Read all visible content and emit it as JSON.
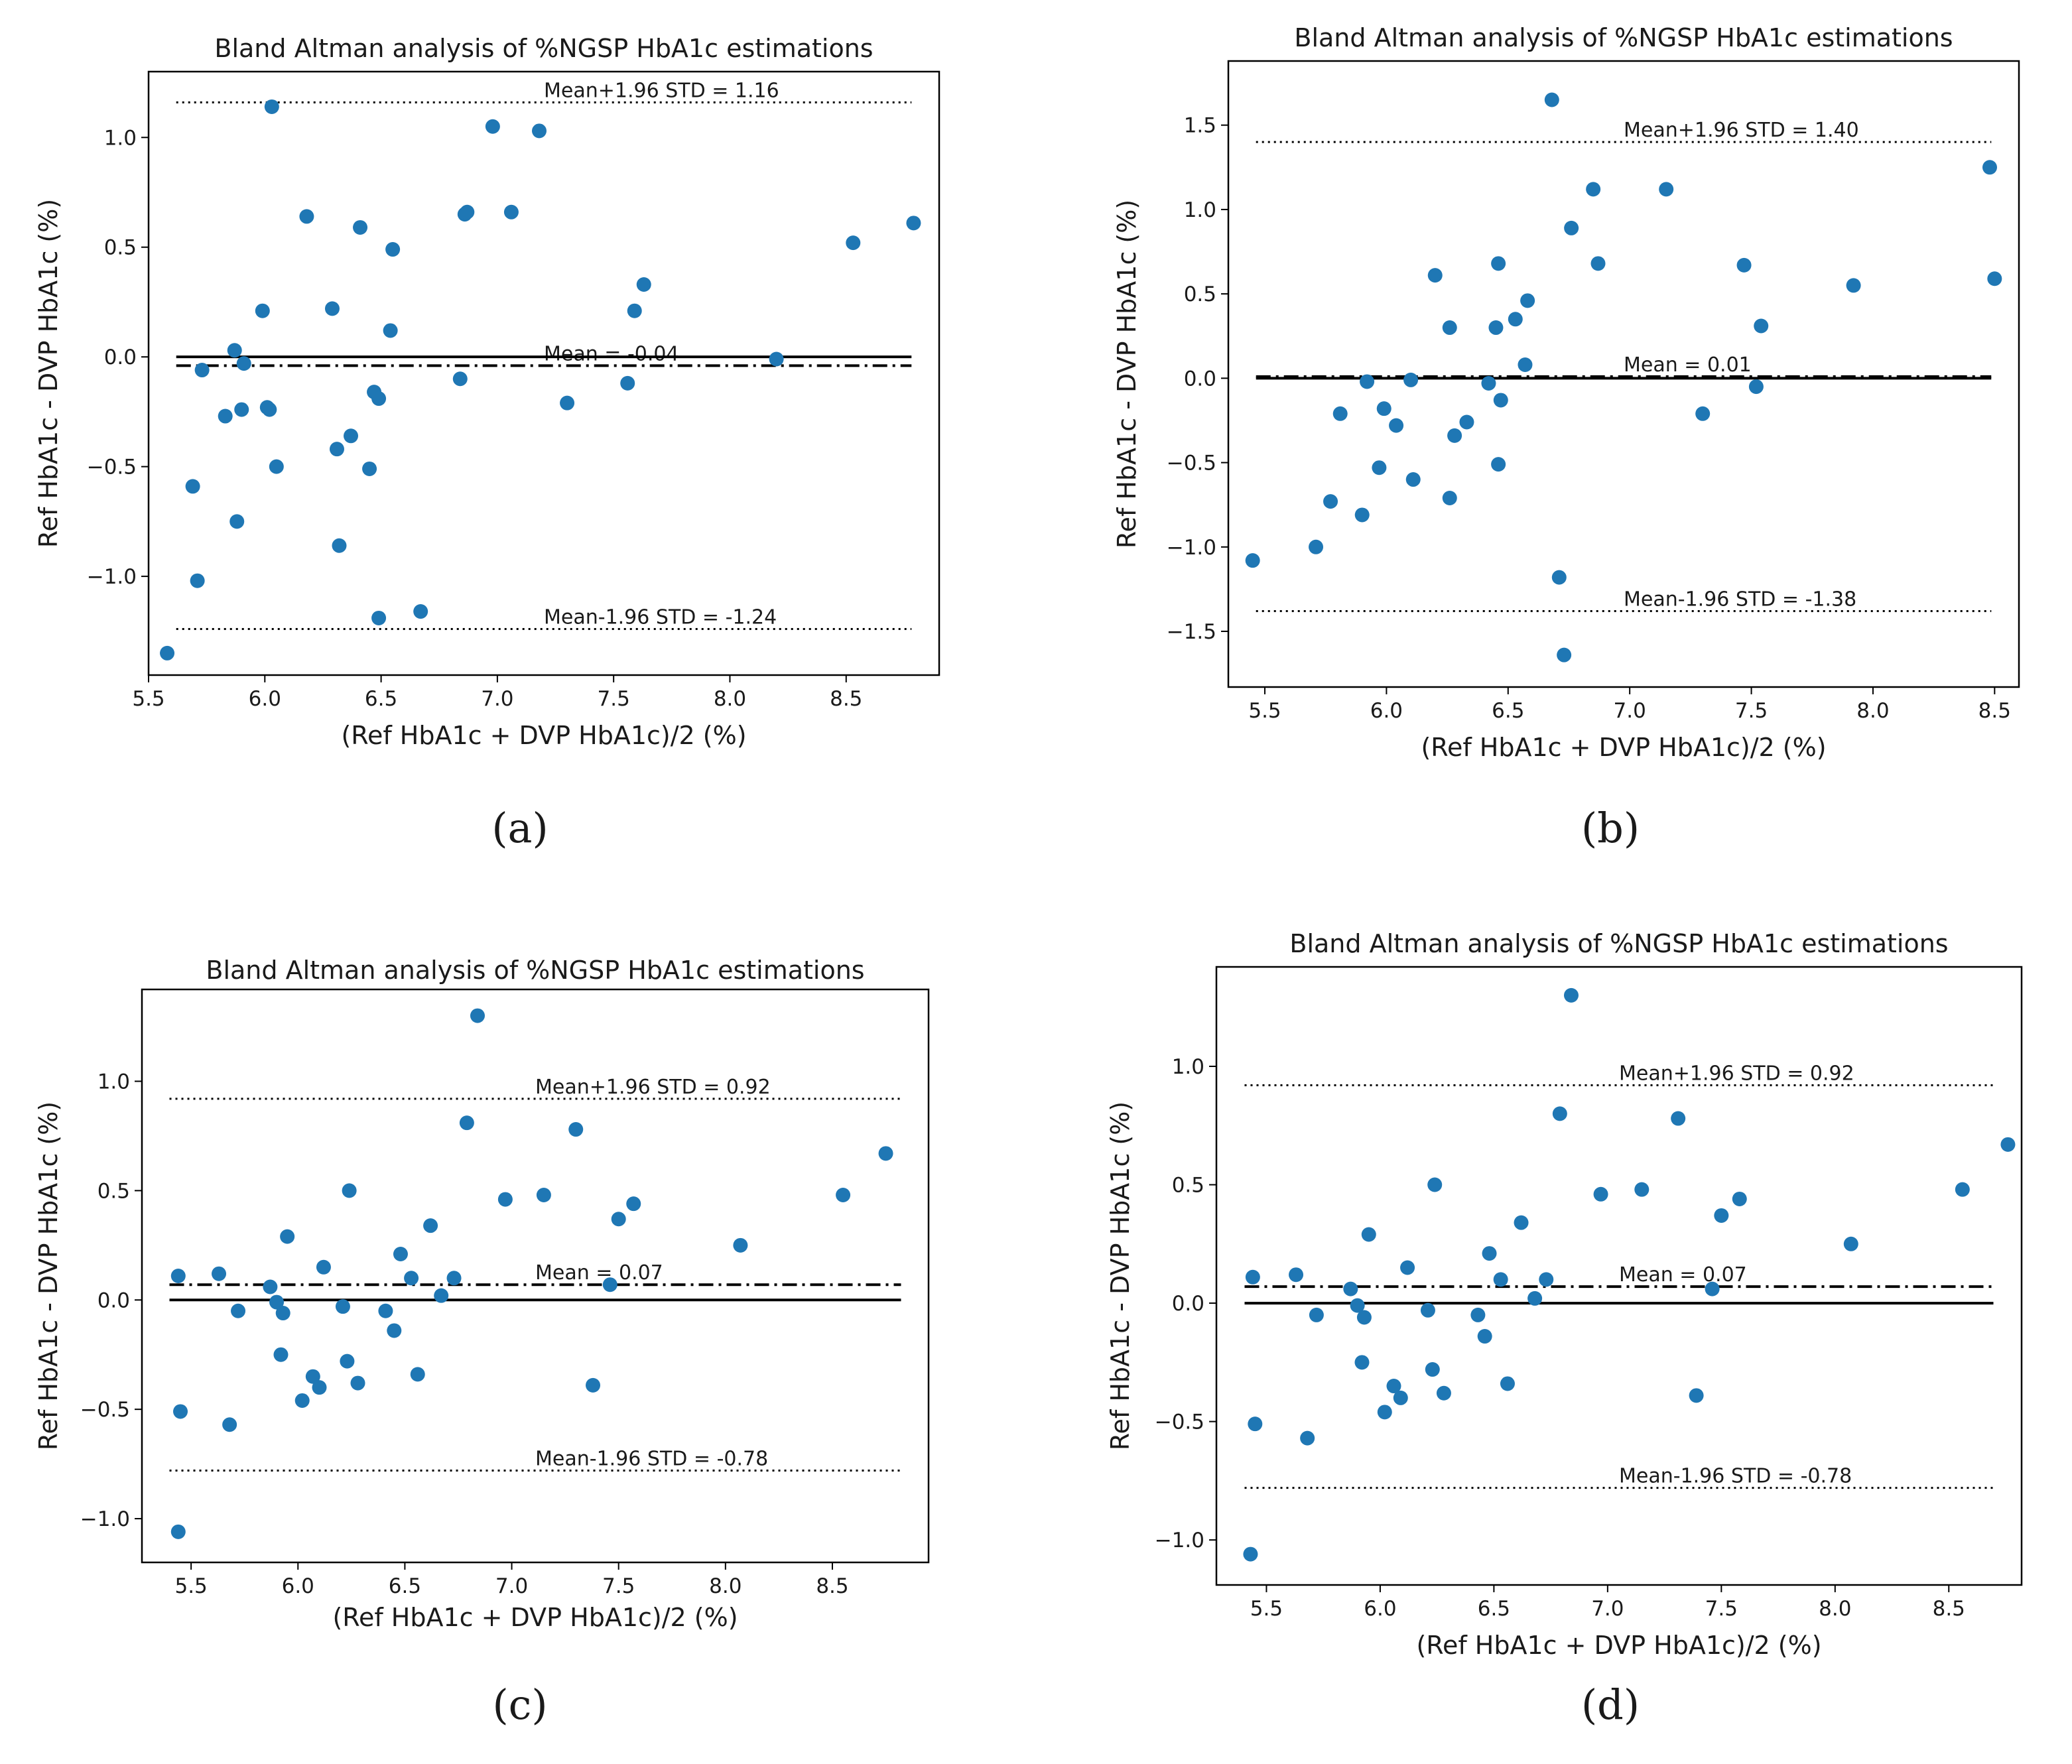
{
  "figure": {
    "caption_labels": [
      "(a)",
      "(b)",
      "(c)",
      "(d)"
    ]
  },
  "chart_data": [
    {
      "panel": "(a)",
      "type": "scatter",
      "title": "Bland Altman analysis of %NGSP HbA1c estimations",
      "xlabel": "(Ref HbA1c + DVP HbA1c)/2 (%)",
      "ylabel": "Ref HbA1c - DVP HbA1c (%)",
      "xlim": [
        5.5,
        8.9
      ],
      "ylim": [
        -1.45,
        1.3
      ],
      "xticks": [
        5.5,
        6.0,
        6.5,
        7.0,
        7.5,
        8.0,
        8.5
      ],
      "yticks": [
        -1.0,
        -0.5,
        0.0,
        0.5,
        1.0
      ],
      "marker_color": "#1f77b4",
      "lines": [
        {
          "name": "mean",
          "value": -0.04,
          "style": "dashdot",
          "label": "Mean = -0.04"
        },
        {
          "name": "zero",
          "value": 0.0,
          "style": "solid",
          "label": ""
        },
        {
          "name": "upper",
          "value": 1.16,
          "style": "dotted",
          "label": "Mean+1.96 STD = 1.16"
        },
        {
          "name": "lower",
          "value": -1.24,
          "style": "dotted",
          "label": "Mean-1.96 STD = -1.24"
        }
      ],
      "points": [
        [
          5.58,
          -1.35
        ],
        [
          5.69,
          -0.59
        ],
        [
          5.71,
          -1.02
        ],
        [
          5.73,
          -0.06
        ],
        [
          5.83,
          -0.27
        ],
        [
          5.87,
          0.03
        ],
        [
          5.88,
          -0.75
        ],
        [
          5.9,
          -0.24
        ],
        [
          5.91,
          -0.03
        ],
        [
          5.99,
          0.21
        ],
        [
          6.01,
          -0.23
        ],
        [
          6.02,
          -0.24
        ],
        [
          6.03,
          1.14
        ],
        [
          6.05,
          -0.5
        ],
        [
          6.18,
          0.64
        ],
        [
          6.29,
          0.22
        ],
        [
          6.31,
          -0.42
        ],
        [
          6.32,
          -0.86
        ],
        [
          6.37,
          -0.36
        ],
        [
          6.41,
          0.59
        ],
        [
          6.45,
          -0.51
        ],
        [
          6.47,
          -0.16
        ],
        [
          6.49,
          -0.19
        ],
        [
          6.49,
          -1.19
        ],
        [
          6.54,
          0.12
        ],
        [
          6.55,
          0.49
        ],
        [
          6.67,
          -1.16
        ],
        [
          6.84,
          -0.1
        ],
        [
          6.86,
          0.65
        ],
        [
          6.87,
          0.66
        ],
        [
          6.98,
          1.05
        ],
        [
          7.06,
          0.66
        ],
        [
          7.18,
          1.03
        ],
        [
          7.3,
          -0.21
        ],
        [
          7.56,
          -0.12
        ],
        [
          7.59,
          0.21
        ],
        [
          7.63,
          0.33
        ],
        [
          8.2,
          -0.01
        ],
        [
          8.53,
          0.52
        ],
        [
          8.79,
          0.61
        ]
      ]
    },
    {
      "panel": "(b)",
      "type": "scatter",
      "title": "Bland Altman analysis of %NGSP HbA1c estimations",
      "xlabel": "(Ref HbA1c + DVP HbA1c)/2 (%)",
      "ylabel": "Ref HbA1c - DVP HbA1c (%)",
      "xlim": [
        5.35,
        8.6
      ],
      "ylim": [
        -1.83,
        1.88
      ],
      "xticks": [
        5.5,
        6.0,
        6.5,
        7.0,
        7.5,
        8.0,
        8.5
      ],
      "yticks": [
        -1.5,
        -1.0,
        -0.5,
        0.0,
        0.5,
        1.0,
        1.5
      ],
      "marker_color": "#1f77b4",
      "lines": [
        {
          "name": "mean",
          "value": 0.01,
          "style": "dashdot",
          "label": "Mean = 0.01"
        },
        {
          "name": "zero",
          "value": 0.0,
          "style": "solid",
          "label": ""
        },
        {
          "name": "upper",
          "value": 1.4,
          "style": "dotted",
          "label": "Mean+1.96 STD = 1.40"
        },
        {
          "name": "lower",
          "value": -1.38,
          "style": "dotted",
          "label": "Mean-1.96 STD = -1.38"
        }
      ],
      "points": [
        [
          5.45,
          -1.08
        ],
        [
          5.71,
          -1.0
        ],
        [
          5.77,
          -0.73
        ],
        [
          5.81,
          -0.21
        ],
        [
          5.9,
          -0.81
        ],
        [
          5.92,
          -0.02
        ],
        [
          5.97,
          -0.53
        ],
        [
          5.99,
          -0.18
        ],
        [
          6.04,
          -0.28
        ],
        [
          6.1,
          -0.01
        ],
        [
          6.11,
          -0.6
        ],
        [
          6.2,
          0.61
        ],
        [
          6.26,
          0.3
        ],
        [
          6.26,
          -0.71
        ],
        [
          6.28,
          -0.34
        ],
        [
          6.33,
          -0.26
        ],
        [
          6.42,
          -0.03
        ],
        [
          6.45,
          0.3
        ],
        [
          6.46,
          0.68
        ],
        [
          6.46,
          -0.51
        ],
        [
          6.47,
          -0.13
        ],
        [
          6.53,
          0.35
        ],
        [
          6.57,
          0.08
        ],
        [
          6.58,
          0.46
        ],
        [
          6.68,
          1.65
        ],
        [
          6.71,
          -1.18
        ],
        [
          6.73,
          -1.64
        ],
        [
          6.76,
          0.89
        ],
        [
          6.85,
          1.12
        ],
        [
          6.87,
          0.68
        ],
        [
          7.15,
          1.12
        ],
        [
          7.3,
          -0.21
        ],
        [
          7.47,
          0.67
        ],
        [
          7.52,
          -0.05
        ],
        [
          7.54,
          0.31
        ],
        [
          7.92,
          0.55
        ],
        [
          8.48,
          1.25
        ],
        [
          8.5,
          0.59
        ]
      ]
    },
    {
      "panel": "(c)",
      "type": "scatter",
      "title": "Bland Altman analysis of %NGSP HbA1c estimations",
      "xlabel": "(Ref HbA1c + DVP HbA1c)/2 (%)",
      "ylabel": "Ref HbA1c - DVP HbA1c (%)",
      "xlim": [
        5.27,
        8.95
      ],
      "ylim": [
        -1.2,
        1.42
      ],
      "xticks": [
        5.5,
        6.0,
        6.5,
        7.0,
        7.5,
        8.0,
        8.5
      ],
      "yticks": [
        -1.0,
        -0.5,
        0.0,
        0.5,
        1.0
      ],
      "marker_color": "#1f77b4",
      "lines": [
        {
          "name": "mean",
          "value": 0.07,
          "style": "dashdot",
          "label": "Mean = 0.07"
        },
        {
          "name": "zero",
          "value": 0.0,
          "style": "solid",
          "label": ""
        },
        {
          "name": "upper",
          "value": 0.92,
          "style": "dotted",
          "label": "Mean+1.96 STD = 0.92"
        },
        {
          "name": "lower",
          "value": -0.78,
          "style": "dotted",
          "label": "Mean-1.96 STD = -0.78"
        }
      ],
      "points": [
        [
          5.44,
          0.11
        ],
        [
          5.44,
          -1.06
        ],
        [
          5.45,
          -0.51
        ],
        [
          5.63,
          0.12
        ],
        [
          5.68,
          -0.57
        ],
        [
          5.72,
          -0.05
        ],
        [
          5.87,
          0.06
        ],
        [
          5.9,
          -0.01
        ],
        [
          5.92,
          -0.25
        ],
        [
          5.93,
          -0.06
        ],
        [
          5.95,
          0.29
        ],
        [
          6.02,
          -0.46
        ],
        [
          6.07,
          -0.35
        ],
        [
          6.1,
          -0.4
        ],
        [
          6.12,
          0.15
        ],
        [
          6.21,
          -0.03
        ],
        [
          6.23,
          -0.28
        ],
        [
          6.24,
          0.5
        ],
        [
          6.28,
          -0.38
        ],
        [
          6.41,
          -0.05
        ],
        [
          6.45,
          -0.14
        ],
        [
          6.48,
          0.21
        ],
        [
          6.53,
          0.1
        ],
        [
          6.56,
          -0.34
        ],
        [
          6.62,
          0.34
        ],
        [
          6.67,
          0.02
        ],
        [
          6.73,
          0.1
        ],
        [
          6.79,
          0.81
        ],
        [
          6.84,
          1.3
        ],
        [
          6.97,
          0.46
        ],
        [
          7.15,
          0.48
        ],
        [
          7.3,
          0.78
        ],
        [
          7.38,
          -0.39
        ],
        [
          7.46,
          0.07
        ],
        [
          7.5,
          0.37
        ],
        [
          7.57,
          0.44
        ],
        [
          8.07,
          0.25
        ],
        [
          8.55,
          0.48
        ],
        [
          8.75,
          0.67
        ]
      ]
    },
    {
      "panel": "(d)",
      "type": "scatter",
      "title": "Bland Altman analysis of %NGSP HbA1c estimations",
      "xlabel": "(Ref HbA1c + DVP HbA1c)/2 (%)",
      "ylabel": "Ref HbA1c - DVP HbA1c (%)",
      "xlim": [
        5.28,
        8.82
      ],
      "ylim": [
        -1.19,
        1.42
      ],
      "xticks": [
        5.5,
        6.0,
        6.5,
        7.0,
        7.5,
        8.0,
        8.5
      ],
      "yticks": [
        -1.0,
        -0.5,
        0.0,
        0.5,
        1.0
      ],
      "marker_color": "#1f77b4",
      "lines": [
        {
          "name": "mean",
          "value": 0.07,
          "style": "dashdot",
          "label": "Mean = 0.07"
        },
        {
          "name": "zero",
          "value": 0.0,
          "style": "solid",
          "label": ""
        },
        {
          "name": "upper",
          "value": 0.92,
          "style": "dotted",
          "label": "Mean+1.96 STD = 0.92"
        },
        {
          "name": "lower",
          "value": -0.78,
          "style": "dotted",
          "label": "Mean-1.96 STD = -0.78"
        }
      ],
      "points": [
        [
          5.44,
          0.11
        ],
        [
          5.43,
          -1.06
        ],
        [
          5.45,
          -0.51
        ],
        [
          5.63,
          0.12
        ],
        [
          5.68,
          -0.57
        ],
        [
          5.72,
          -0.05
        ],
        [
          5.87,
          0.06
        ],
        [
          5.9,
          -0.01
        ],
        [
          5.92,
          -0.25
        ],
        [
          5.93,
          -0.06
        ],
        [
          5.95,
          0.29
        ],
        [
          6.02,
          -0.46
        ],
        [
          6.06,
          -0.35
        ],
        [
          6.09,
          -0.4
        ],
        [
          6.12,
          0.15
        ],
        [
          6.21,
          -0.03
        ],
        [
          6.23,
          -0.28
        ],
        [
          6.24,
          0.5
        ],
        [
          6.28,
          -0.38
        ],
        [
          6.43,
          -0.05
        ],
        [
          6.46,
          -0.14
        ],
        [
          6.48,
          0.21
        ],
        [
          6.53,
          0.1
        ],
        [
          6.56,
          -0.34
        ],
        [
          6.62,
          0.34
        ],
        [
          6.68,
          0.02
        ],
        [
          6.73,
          0.1
        ],
        [
          6.79,
          0.8
        ],
        [
          6.84,
          1.3
        ],
        [
          6.97,
          0.46
        ],
        [
          7.15,
          0.48
        ],
        [
          7.31,
          0.78
        ],
        [
          7.39,
          -0.39
        ],
        [
          7.46,
          0.06
        ],
        [
          7.5,
          0.37
        ],
        [
          7.58,
          0.44
        ],
        [
          8.07,
          0.25
        ],
        [
          8.56,
          0.48
        ],
        [
          8.76,
          0.67
        ]
      ]
    }
  ]
}
